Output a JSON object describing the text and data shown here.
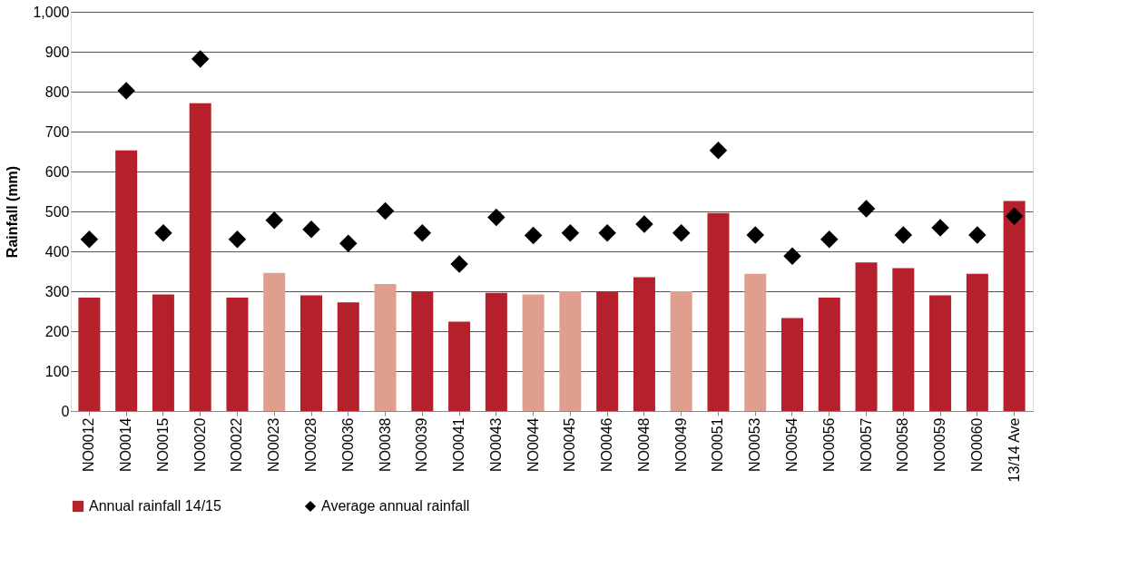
{
  "chart_data": {
    "type": "bar",
    "ylabel": "Rainfall (mm)",
    "categories": [
      "NO0012",
      "NO0014",
      "NO0015",
      "NO0020",
      "NO0022",
      "NO0023",
      "NO0028",
      "NO0036",
      "NO0038",
      "NO0039",
      "NO0041",
      "NO0043",
      "NO0044",
      "NO0045",
      "NO0046",
      "NO0048",
      "NO0049",
      "NO0051",
      "NO0053",
      "NO0054",
      "NO0056",
      "NO0057",
      "NO0058",
      "NO0059",
      "NO0060",
      "13/14 Ave"
    ],
    "series": [
      {
        "name": "Annual rainfall 14/15",
        "color": "#b5202a",
        "colors": [
          "#b5202a",
          "#b5202a",
          "#b5202a",
          "#b5202a",
          "#b5202a",
          "#df9e8e",
          "#b5202a",
          "#b5202a",
          "#df9e8e",
          "#b5202a",
          "#b5202a",
          "#b5202a",
          "#df9e8e",
          "#df9e8e",
          "#b5202a",
          "#b5202a",
          "#df9e8e",
          "#b5202a",
          "#df9e8e",
          "#b5202a",
          "#b5202a",
          "#b5202a",
          "#b5202a",
          "#b5202a",
          "#b5202a",
          "#b5202a"
        ],
        "values": [
          284,
          653,
          292,
          771,
          284,
          346,
          290,
          272,
          318,
          300,
          224,
          296,
          292,
          300,
          300,
          335,
          300,
          496,
          344,
          233,
          284,
          372,
          358,
          290,
          344,
          526
        ]
      },
      {
        "name": "Average annual rainfall",
        "type": "scatter",
        "marker": "diamond",
        "color": "#000000",
        "values": [
          430,
          802,
          446,
          882,
          430,
          478,
          455,
          420,
          501,
          446,
          368,
          485,
          440,
          446,
          446,
          468,
          446,
          653,
          441,
          388,
          430,
          507,
          441,
          459,
          441,
          488
        ]
      }
    ],
    "ylim": [
      0,
      1000
    ],
    "yticks": [
      0,
      100,
      200,
      300,
      400,
      500,
      600,
      700,
      800,
      900,
      {
        "value": 1000,
        "label": "1,000"
      }
    ],
    "grid": "y",
    "legend": "bottom"
  }
}
